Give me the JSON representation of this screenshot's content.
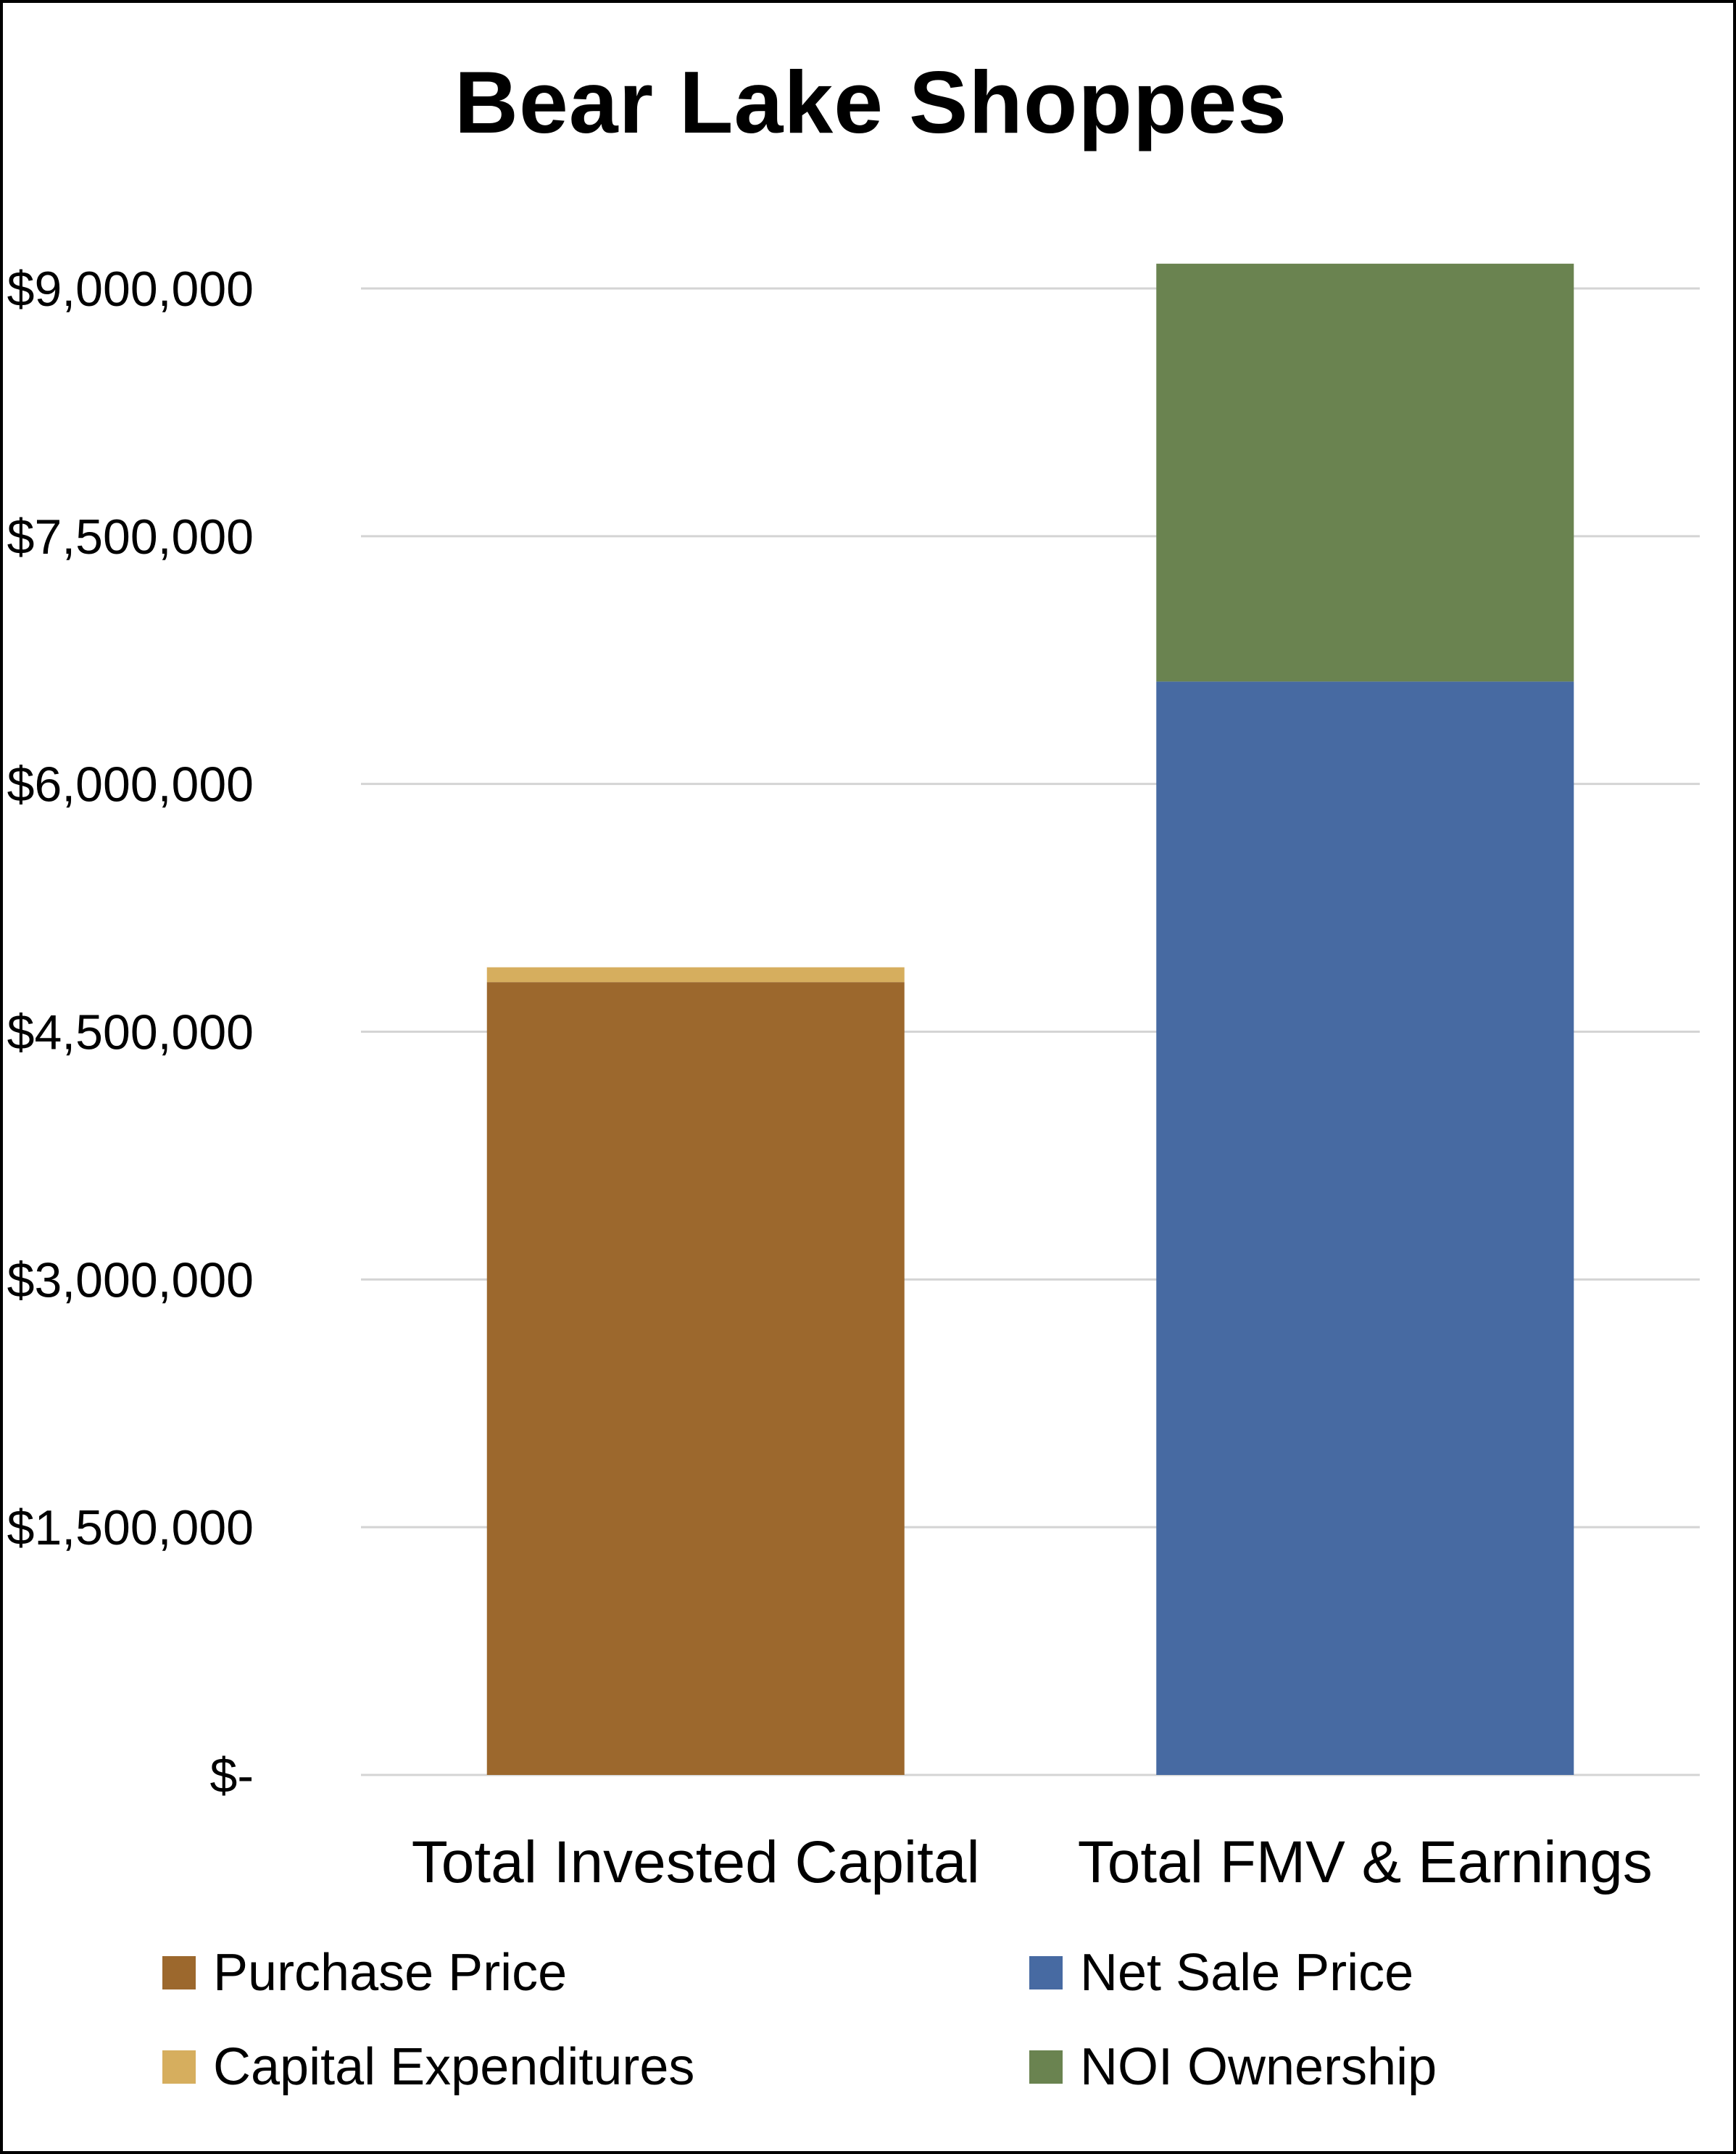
{
  "chart_data": {
    "type": "bar",
    "stacked": true,
    "title": "Bear Lake Shoppes",
    "xlabel": "",
    "ylabel": "",
    "categories": [
      "Total Invested Capital",
      "Total FMV & Earnings"
    ],
    "series": [
      {
        "name": "Purchase Price",
        "color": "#9c682d",
        "values": [
          4800000,
          0
        ]
      },
      {
        "name": "Capital Expenditures",
        "color": "#d6ae5e",
        "values": [
          90000,
          0
        ]
      },
      {
        "name": "Net Sale Price",
        "color": "#476aa2",
        "values": [
          0,
          6620000
        ]
      },
      {
        "name": "NOI Ownership",
        "color": "#6a8350",
        "values": [
          0,
          2530000
        ]
      }
    ],
    "ylim": [
      0,
      9000000
    ],
    "yticks": [
      0,
      1500000,
      3000000,
      4500000,
      6000000,
      7500000,
      9000000
    ],
    "ytick_labels": [
      "$-",
      "$1,500,000",
      "$3,000,000",
      "$4,500,000",
      "$6,000,000",
      "$7,500,000",
      "$9,000,000"
    ],
    "grid": true,
    "legend_position": "bottom"
  }
}
